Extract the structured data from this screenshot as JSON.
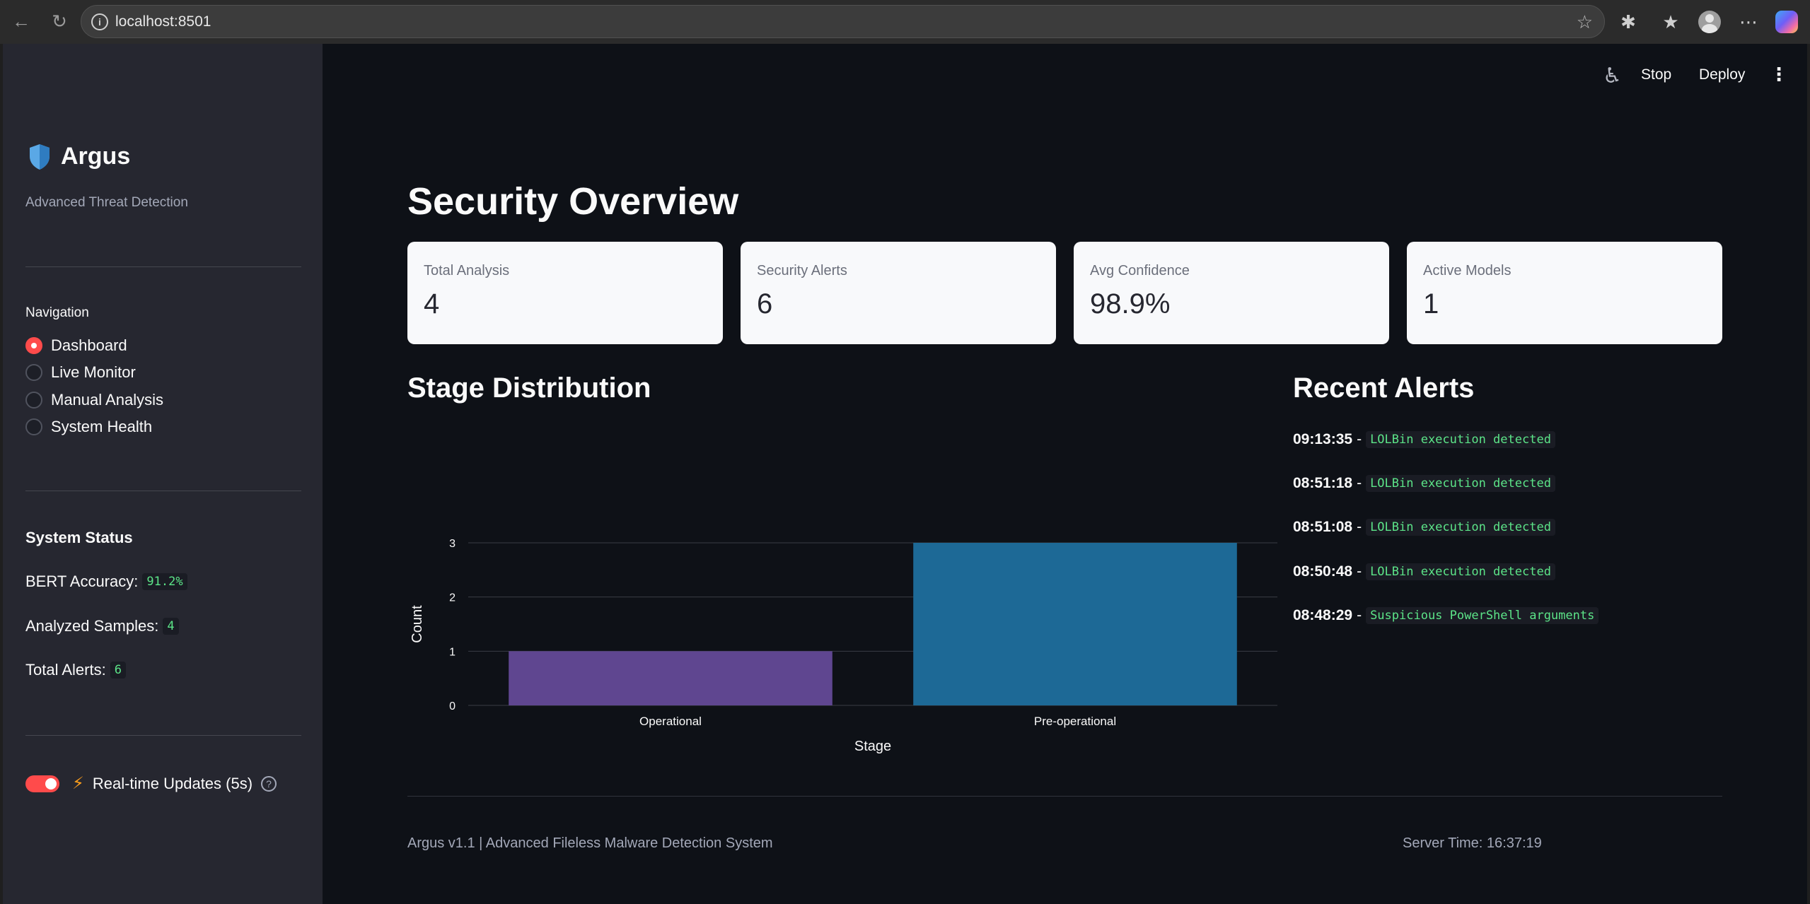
{
  "browser": {
    "url": "localhost:8501"
  },
  "topbar": {
    "stop_label": "Stop",
    "deploy_label": "Deploy"
  },
  "sidebar": {
    "brand_title": "Argus",
    "brand_subtitle": "Advanced Threat Detection",
    "nav_label": "Navigation",
    "nav_items": [
      {
        "label": "Dashboard",
        "selected": true
      },
      {
        "label": "Live Monitor",
        "selected": false
      },
      {
        "label": "Manual Analysis",
        "selected": false
      },
      {
        "label": "System Health",
        "selected": false
      }
    ],
    "status_title": "System Status",
    "status": [
      {
        "label": "BERT Accuracy:",
        "value": "91.2%"
      },
      {
        "label": "Analyzed Samples:",
        "value": "4"
      },
      {
        "label": "Total Alerts:",
        "value": "6"
      }
    ],
    "toggle": {
      "label": "Real-time Updates (5s)",
      "on": true
    },
    "accent_color": "#ff4b4b"
  },
  "main": {
    "title": "Security Overview",
    "metrics": [
      {
        "label": "Total Analysis",
        "value": "4"
      },
      {
        "label": "Security Alerts",
        "value": "6"
      },
      {
        "label": "Avg Confidence",
        "value": "98.9%"
      },
      {
        "label": "Active Models",
        "value": "1"
      }
    ],
    "chart_title": "Stage Distribution",
    "alerts_title": "Recent Alerts",
    "alerts": [
      {
        "time": "09:13:35",
        "sep": "-",
        "message": "LOLBin execution detected"
      },
      {
        "time": "08:51:18",
        "sep": "-",
        "message": "LOLBin execution detected"
      },
      {
        "time": "08:51:08",
        "sep": "-",
        "message": "LOLBin execution detected"
      },
      {
        "time": "08:50:48",
        "sep": "-",
        "message": "LOLBin execution detected"
      },
      {
        "time": "08:48:29",
        "sep": "-",
        "message": "Suspicious PowerShell arguments"
      }
    ],
    "footer_left": "Argus v1.1 | Advanced Fileless Malware Detection System",
    "footer_right": "Server Time: 16:37:19"
  },
  "chart_data": {
    "type": "bar",
    "categories": [
      "Operational",
      "Pre-operational"
    ],
    "values": [
      1,
      3
    ],
    "colors": [
      "#5f4690",
      "#1d6996"
    ],
    "xlabel": "Stage",
    "ylabel": "Count",
    "ylim": [
      0,
      3
    ],
    "yticks": [
      0,
      1,
      2,
      3
    ],
    "grid": true
  }
}
